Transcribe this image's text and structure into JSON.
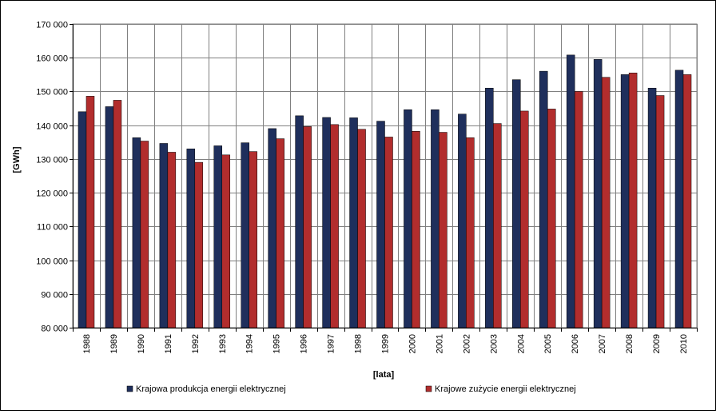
{
  "chart_data": {
    "type": "bar",
    "title": "",
    "xlabel": "[lata]",
    "ylabel": "[GWh]",
    "ylim": [
      80000,
      170000
    ],
    "y_ticks": [
      80000,
      90000,
      100000,
      110000,
      120000,
      130000,
      140000,
      150000,
      160000,
      170000
    ],
    "y_tick_labels": [
      "80 000",
      "90 000",
      "100 000",
      "110 000",
      "120 000",
      "130 000",
      "140 000",
      "150 000",
      "160 000",
      "170 000"
    ],
    "categories": [
      "1988",
      "1989",
      "1990",
      "1991",
      "1992",
      "1993",
      "1994",
      "1995",
      "1996",
      "1997",
      "1998",
      "1999",
      "2000",
      "2001",
      "2002",
      "2003",
      "2004",
      "2005",
      "2006",
      "2007",
      "2008",
      "2009",
      "2010"
    ],
    "series": [
      {
        "name": "Krajowa produkcja energii elektrycznej",
        "color": "#1F2F5C",
        "values": [
          144000,
          145500,
          136300,
          134600,
          133000,
          133900,
          134800,
          139000,
          142800,
          142300,
          142200,
          141200,
          144600,
          144600,
          143300,
          151000,
          153500,
          156000,
          160800,
          159500,
          155000,
          151000,
          156300
        ]
      },
      {
        "name": "Krajowe zużycie energii elektrycznej",
        "color": "#B22D2D",
        "values": [
          148600,
          147400,
          135300,
          132000,
          129000,
          131200,
          132200,
          136000,
          139600,
          140200,
          138800,
          136500,
          138200,
          137900,
          136300,
          140500,
          144200,
          144800,
          150000,
          154200,
          155500,
          148800,
          155000
        ]
      }
    ],
    "grid": true,
    "legend_position": "bottom"
  }
}
